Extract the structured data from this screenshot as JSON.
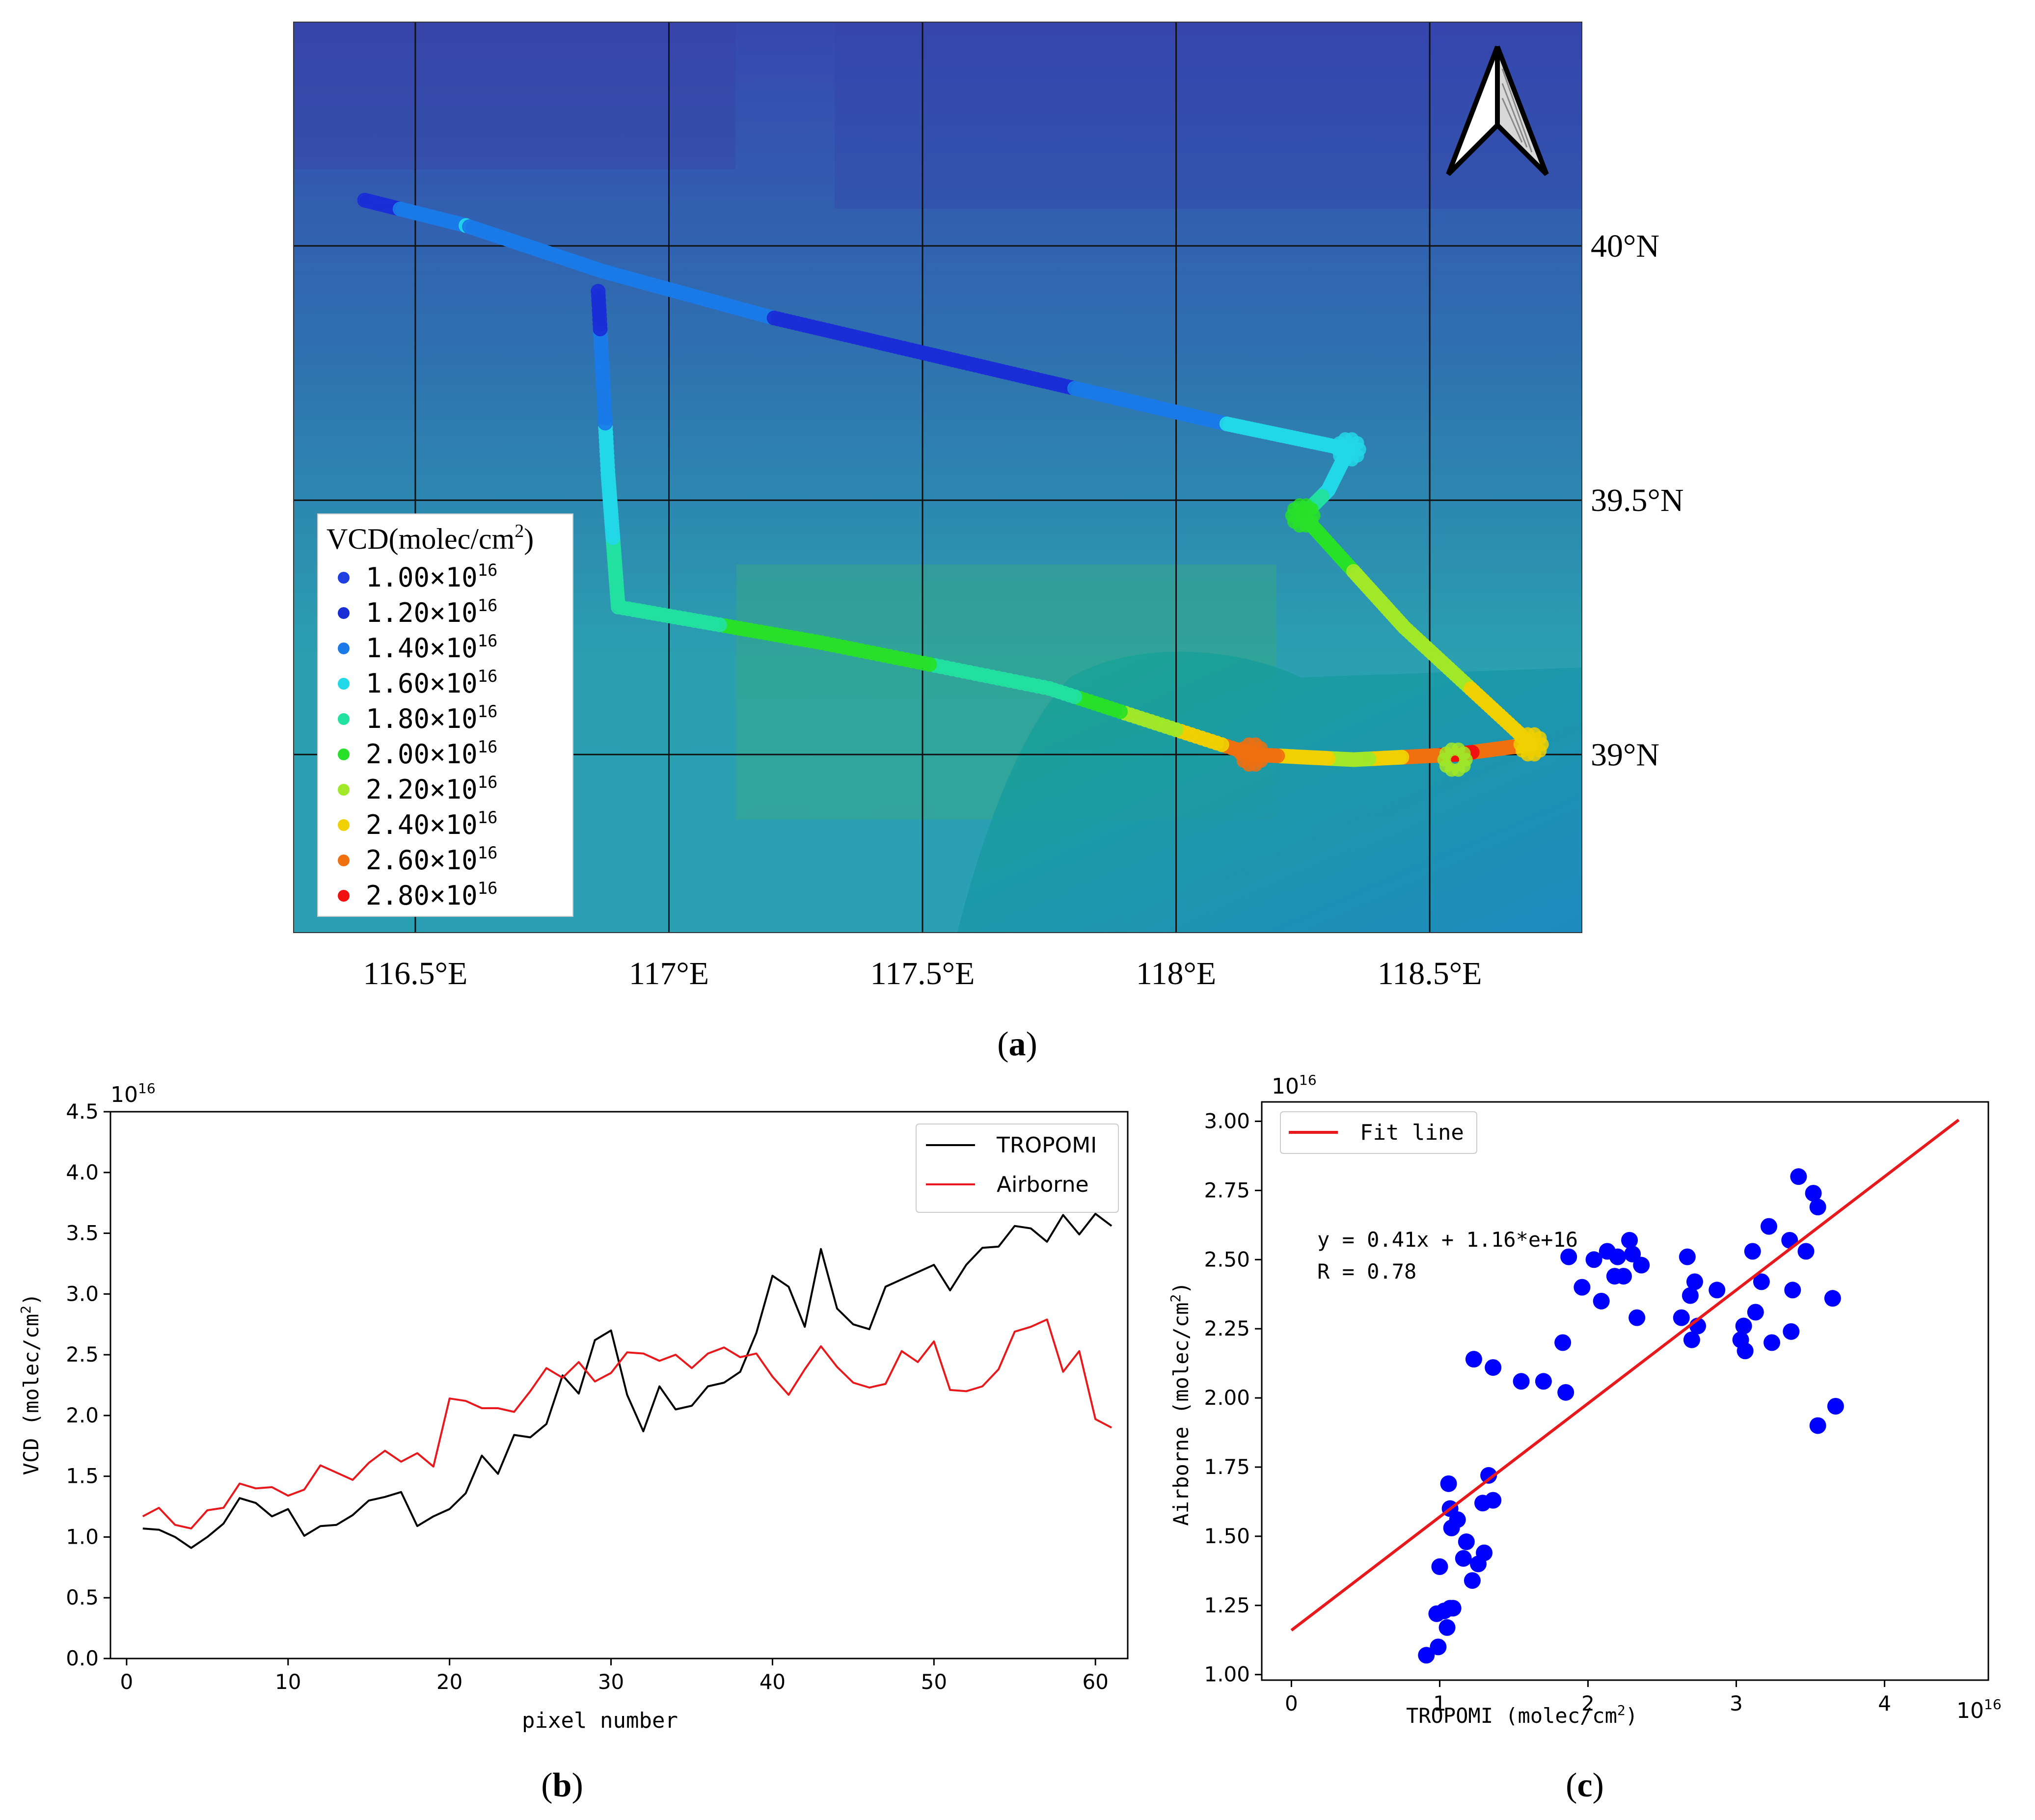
{
  "figure": {
    "panel_a_caption": "(a)",
    "panel_b_caption": "(b)",
    "panel_c_caption": "(c)",
    "caption_letter_a": "a",
    "caption_letter_b": "b",
    "caption_letter_c": "c"
  },
  "colors": {
    "tropomi": "#000000",
    "airborne": "#e8191c",
    "scatter": "#0000ff",
    "fit": "#e8191c",
    "map_sea": "#1a8fb8",
    "map_land": "#2e5fa8"
  },
  "chart_data": [
    {
      "id": "map",
      "type": "map",
      "lon_labels": [
        "116.5°E",
        "117°E",
        "117.5°E",
        "118°E",
        "118.5°E"
      ],
      "lon_values": [
        116.5,
        117.0,
        117.5,
        118.0,
        118.5
      ],
      "lat_labels": [
        "40°N",
        "39.5°N",
        "39°N"
      ],
      "lat_values": [
        40.0,
        39.5,
        39.0
      ],
      "lon_range": [
        116.26,
        118.8
      ],
      "lat_range": [
        38.65,
        40.44
      ],
      "legend_title": "VCD(molec/cm",
      "legend_title_sup": "2",
      "legend_title_close": ")",
      "legend_sup": "16",
      "legend_entries": [
        {
          "label": "1.00×10",
          "color": "#1f3fe0"
        },
        {
          "label": "1.20×10",
          "color": "#1a2ed6"
        },
        {
          "label": "1.40×10",
          "color": "#1a7ae8"
        },
        {
          "label": "1.60×10",
          "color": "#22d8e8"
        },
        {
          "label": "1.80×10",
          "color": "#22e0a0"
        },
        {
          "label": "2.00×10",
          "color": "#28e028"
        },
        {
          "label": "2.20×10",
          "color": "#a0e828"
        },
        {
          "label": "2.40×10",
          "color": "#f0d000"
        },
        {
          "label": "2.60×10",
          "color": "#f07010"
        },
        {
          "label": "2.80×10",
          "color": "#f01010"
        }
      ],
      "flight_track": [
        {
          "lon": 116.4,
          "lat": 40.09,
          "vcd": 1.2
        },
        {
          "lon": 116.6,
          "lat": 40.04,
          "vcd": 1.5
        },
        {
          "lon": 116.87,
          "lat": 39.95,
          "vcd": 1.3
        },
        {
          "lon": 117.2,
          "lat": 39.86,
          "vcd": 1.3
        },
        {
          "lon": 117.5,
          "lat": 39.79,
          "vcd": 1.2
        },
        {
          "lon": 117.8,
          "lat": 39.72,
          "vcd": 1.3
        },
        {
          "lon": 118.1,
          "lat": 39.65,
          "vcd": 1.5
        },
        {
          "lon": 118.34,
          "lat": 39.6,
          "vcd": 1.6
        },
        {
          "lon": 118.3,
          "lat": 39.52,
          "vcd": 1.6
        },
        {
          "lon": 118.25,
          "lat": 39.47,
          "vcd": 2.0
        },
        {
          "lon": 118.45,
          "lat": 39.25,
          "vcd": 2.2
        },
        {
          "lon": 118.7,
          "lat": 39.02,
          "vcd": 2.4
        },
        {
          "lon": 118.55,
          "lat": 39.0,
          "vcd": 2.8
        },
        {
          "lon": 118.35,
          "lat": 38.99,
          "vcd": 2.2
        },
        {
          "lon": 118.15,
          "lat": 39.0,
          "vcd": 2.6
        },
        {
          "lon": 117.75,
          "lat": 39.13,
          "vcd": 1.8
        },
        {
          "lon": 117.3,
          "lat": 39.22,
          "vcd": 2.0
        },
        {
          "lon": 116.9,
          "lat": 39.29,
          "vcd": 1.8
        },
        {
          "lon": 116.88,
          "lat": 39.55,
          "vcd": 1.6
        },
        {
          "lon": 116.86,
          "lat": 39.92,
          "vcd": 1.2
        }
      ]
    },
    {
      "id": "line",
      "type": "line",
      "xlabel": "pixel number",
      "ylabel": "VCD (molec/cm",
      "ylabel_sup": "2",
      "ylabel_close": ")",
      "multiplier": "10",
      "multiplier_sup": "16",
      "xlim": [
        -1,
        62
      ],
      "ylim": [
        0,
        4.5
      ],
      "xticks": [
        0,
        10,
        20,
        30,
        40,
        50,
        60
      ],
      "xtick_labels": [
        "0",
        "10",
        "20",
        "30",
        "40",
        "50",
        "60"
      ],
      "yticks": [
        0,
        0.5,
        1.0,
        1.5,
        2.0,
        2.5,
        3.0,
        3.5,
        4.0,
        4.5
      ],
      "ytick_labels": [
        "0.0",
        "0.5",
        "1.0",
        "1.5",
        "2.0",
        "2.5",
        "3.0",
        "3.5",
        "4.0",
        "4.5"
      ],
      "legend": [
        "TROPOMI",
        "Airborne"
      ],
      "series": [
        {
          "name": "TROPOMI",
          "x_start": 1,
          "values": [
            1.07,
            1.06,
            1.0,
            0.91,
            1.0,
            1.11,
            1.32,
            1.28,
            1.17,
            1.23,
            1.01,
            1.09,
            1.1,
            1.18,
            1.3,
            1.33,
            1.37,
            1.09,
            1.17,
            1.23,
            1.36,
            1.67,
            1.52,
            1.84,
            1.82,
            1.93,
            2.33,
            2.18,
            2.62,
            2.7,
            2.17,
            1.87,
            2.24,
            2.05,
            2.08,
            2.24,
            2.27,
            2.36,
            2.68,
            3.15,
            3.06,
            2.73,
            3.37,
            2.88,
            2.75,
            2.71,
            3.06,
            3.12,
            3.18,
            3.24,
            3.03,
            3.24,
            3.38,
            3.39,
            3.56,
            3.54,
            3.43,
            3.65,
            3.49,
            3.66,
            3.56
          ]
        },
        {
          "name": "Airborne",
          "x_start": 1,
          "values": [
            1.17,
            1.24,
            1.1,
            1.07,
            1.22,
            1.24,
            1.44,
            1.4,
            1.41,
            1.34,
            1.39,
            1.59,
            1.53,
            1.47,
            1.61,
            1.71,
            1.62,
            1.69,
            1.58,
            2.14,
            2.12,
            2.06,
            2.06,
            2.03,
            2.2,
            2.39,
            2.31,
            2.44,
            2.28,
            2.35,
            2.52,
            2.51,
            2.45,
            2.5,
            2.39,
            2.51,
            2.56,
            2.48,
            2.51,
            2.32,
            2.17,
            2.38,
            2.57,
            2.4,
            2.27,
            2.23,
            2.26,
            2.53,
            2.44,
            2.61,
            2.21,
            2.2,
            2.24,
            2.38,
            2.69,
            2.73,
            2.79,
            2.36,
            2.53,
            1.97,
            1.9
          ]
        }
      ]
    },
    {
      "id": "scatter",
      "type": "scatter",
      "xlabel": "TROPOMI (molec/cm",
      "ylabel": "Airborne (molec/cm",
      "label_sup": "2",
      "label_close": ")",
      "x_multiplier": "10",
      "x_multiplier_sup": "16",
      "y_multiplier": "10",
      "y_multiplier_sup": "16",
      "xlim": [
        -0.2,
        4.7
      ],
      "ylim": [
        0.98,
        3.07
      ],
      "xticks": [
        0,
        1,
        2,
        3,
        4
      ],
      "xtick_labels": [
        "0",
        "1",
        "2",
        "3",
        "4"
      ],
      "yticks": [
        1.0,
        1.25,
        1.5,
        1.75,
        2.0,
        2.25,
        2.5,
        2.75,
        3.0
      ],
      "ytick_labels": [
        "1.00",
        "1.25",
        "1.50",
        "1.75",
        "2.00",
        "2.25",
        "2.50",
        "2.75",
        "3.00"
      ],
      "legend": "Fit line",
      "equation": "y = 0.41x + 1.16*e+16",
      "r_text": "R = 0.78",
      "fit": {
        "slope": 0.41,
        "intercept": 1.16,
        "x_range": [
          0,
          4.5
        ]
      },
      "points": [
        [
          0.91,
          1.07
        ],
        [
          0.99,
          1.1
        ],
        [
          0.98,
          1.22
        ],
        [
          1.0,
          1.39
        ],
        [
          1.03,
          1.23
        ],
        [
          1.05,
          1.17
        ],
        [
          1.07,
          1.24
        ],
        [
          1.09,
          1.24
        ],
        [
          1.06,
          1.69
        ],
        [
          1.07,
          1.6
        ],
        [
          1.08,
          1.53
        ],
        [
          1.12,
          1.56
        ],
        [
          1.16,
          1.42
        ],
        [
          1.18,
          1.48
        ],
        [
          1.22,
          1.34
        ],
        [
          1.26,
          1.4
        ],
        [
          1.3,
          1.44
        ],
        [
          1.29,
          1.62
        ],
        [
          1.33,
          1.72
        ],
        [
          1.36,
          1.63
        ],
        [
          1.23,
          2.14
        ],
        [
          1.36,
          2.11
        ],
        [
          1.55,
          2.06
        ],
        [
          1.7,
          2.06
        ],
        [
          1.83,
          2.2
        ],
        [
          1.85,
          2.02
        ],
        [
          1.87,
          2.51
        ],
        [
          1.96,
          2.4
        ],
        [
          2.04,
          2.5
        ],
        [
          2.09,
          2.35
        ],
        [
          2.13,
          2.53
        ],
        [
          2.18,
          2.44
        ],
        [
          2.2,
          2.51
        ],
        [
          2.24,
          2.44
        ],
        [
          2.28,
          2.57
        ],
        [
          2.3,
          2.52
        ],
        [
          2.33,
          2.29
        ],
        [
          2.36,
          2.48
        ],
        [
          2.63,
          2.29
        ],
        [
          2.67,
          2.51
        ],
        [
          2.7,
          2.21
        ],
        [
          2.72,
          2.42
        ],
        [
          2.74,
          2.26
        ],
        [
          2.69,
          2.37
        ],
        [
          2.87,
          2.39
        ],
        [
          3.03,
          2.21
        ],
        [
          3.05,
          2.26
        ],
        [
          3.06,
          2.17
        ],
        [
          3.11,
          2.53
        ],
        [
          3.13,
          2.31
        ],
        [
          3.17,
          2.42
        ],
        [
          3.22,
          2.62
        ],
        [
          3.24,
          2.2
        ],
        [
          3.36,
          2.57
        ],
        [
          3.37,
          2.24
        ],
        [
          3.38,
          2.39
        ],
        [
          3.42,
          2.8
        ],
        [
          3.47,
          2.53
        ],
        [
          3.52,
          2.74
        ],
        [
          3.55,
          2.69
        ],
        [
          3.55,
          1.9
        ],
        [
          3.65,
          2.36
        ],
        [
          3.67,
          1.97
        ]
      ]
    }
  ]
}
